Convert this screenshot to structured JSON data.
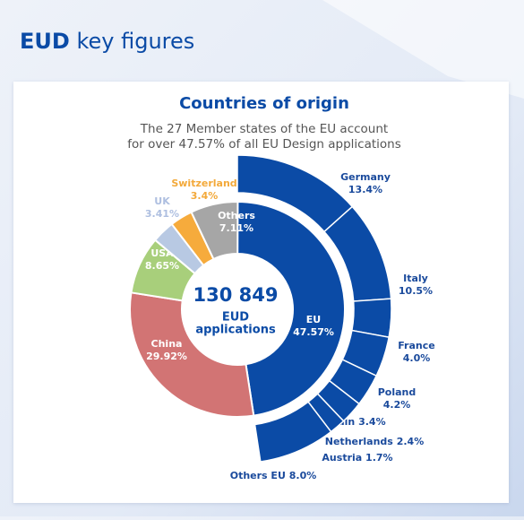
{
  "header": {
    "title_strong": "EUD",
    "title": "key figures"
  },
  "chart_data": {
    "type": "sunburst",
    "title": "Countries of origin",
    "subtitle": [
      "The 27 Member states of the EU account",
      "for over 47.57% of all EU Design applications"
    ],
    "total": {
      "value": 130849,
      "label": "130 849"
    },
    "total_caption": [
      "EUD",
      "applications"
    ],
    "inner": {
      "categories": [
        "EU",
        "China",
        "USA",
        "UK",
        "Switzerland",
        "Others"
      ],
      "values": [
        47.57,
        29.92,
        8.65,
        3.41,
        3.4,
        7.11
      ],
      "value_labels": [
        "47.57%",
        "29.92%",
        "8.65%",
        "3.41%",
        "3.4%",
        "7.11%"
      ],
      "colors": [
        "#0b4ba6",
        "#d27474",
        "#a8cf7b",
        "#b8c9e3",
        "#f6ab3c",
        "#a6a6a6"
      ]
    },
    "outer": {
      "parent": "EU",
      "categories": [
        "Germany",
        "Italy",
        "France",
        "Poland",
        "Spain",
        "Netherlands",
        "Austria",
        "Others EU"
      ],
      "values": [
        13.4,
        10.5,
        4.0,
        4.2,
        3.4,
        2.4,
        1.7,
        8.0
      ],
      "value_labels": [
        "13.4%",
        "10.5%",
        "4.0%",
        "4.2%",
        "3.4%",
        "2.4%",
        "1.7%",
        "8.0%"
      ],
      "color": "#0b4ba6"
    }
  }
}
